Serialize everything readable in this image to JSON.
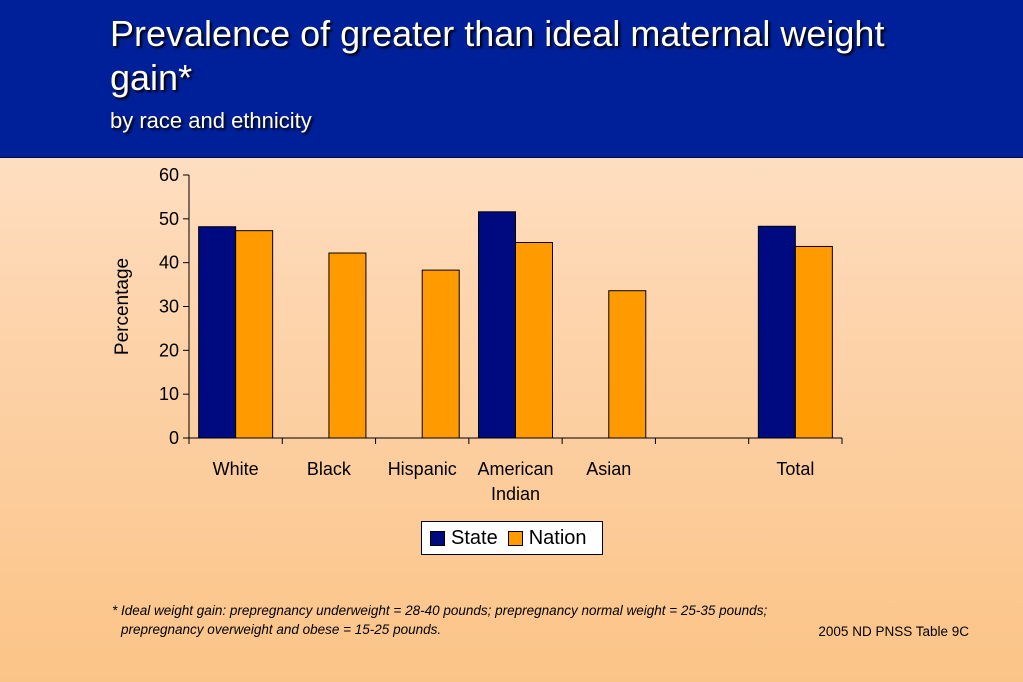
{
  "slide": {
    "title": "Prevalence of greater than ideal maternal weight gain*",
    "subtitle": "by race and ethnicity",
    "footnote_line1": "*  Ideal weight gain: prepregnancy underweight = 28-40 pounds; prepregnancy normal weight = 25-35 pounds;",
    "footnote_line2": "prepregnancy overweight and obese = 15-25 pounds.",
    "source": "2005 ND PNSS Table 9C"
  },
  "colors": {
    "state": "#000a80",
    "nation": "#ff9a00"
  },
  "chart_data": {
    "type": "bar",
    "categories": [
      [
        "White"
      ],
      [
        "Black"
      ],
      [
        "Hispanic"
      ],
      [
        "American",
        "Indian"
      ],
      [
        "Asian"
      ],
      [
        ""
      ],
      [
        "Total"
      ]
    ],
    "series": [
      {
        "name": "State",
        "values": [
          48.2,
          null,
          null,
          51.6,
          null,
          null,
          48.3
        ]
      },
      {
        "name": "Nation",
        "values": [
          47.3,
          42.2,
          38.3,
          44.6,
          33.6,
          null,
          43.7
        ]
      }
    ],
    "ylabel": "Percentage",
    "xlabel": "",
    "ylim": [
      0,
      60
    ],
    "yticks": [
      0,
      10,
      20,
      30,
      40,
      50,
      60
    ],
    "grid": false,
    "legend_position": "bottom-center"
  }
}
